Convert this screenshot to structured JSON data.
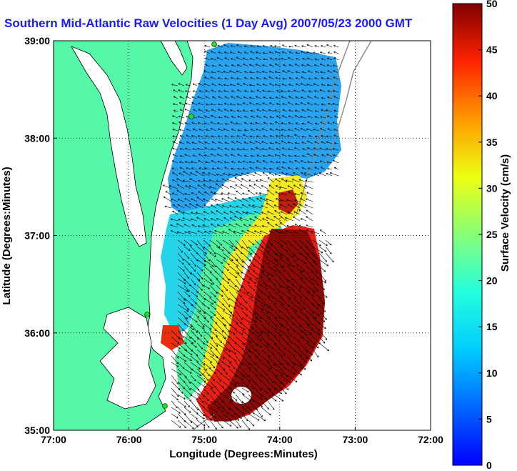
{
  "title": "Southern Mid-Atlantic Raw Velocities (1 Day Avg) 2007/05/23 2000 GMT",
  "map": {
    "xlabel": "Longitude (Degrees:Minutes)",
    "ylabel": "Latitude (Degrees:Minutes)",
    "x_ticks": [
      "77:00",
      "76:00",
      "75:00",
      "74:00",
      "73:00",
      "72:00"
    ],
    "y_ticks": [
      "39:00",
      "38:00",
      "37:00",
      "36:00",
      "35:00"
    ],
    "lon_range": [
      -77,
      -72
    ],
    "lat_range": [
      35,
      39
    ],
    "grid": "dotted"
  },
  "colorbar": {
    "label": "Surface Velocity (cm/s)",
    "ticks": [
      "0",
      "5",
      "10",
      "15",
      "20",
      "25",
      "30",
      "35",
      "40",
      "45",
      "50"
    ],
    "range": [
      0,
      50
    ],
    "colormap": "jet"
  },
  "colors": {
    "land": "#55f7a8",
    "title": "#1a1aff",
    "station": "#22dd22"
  }
}
